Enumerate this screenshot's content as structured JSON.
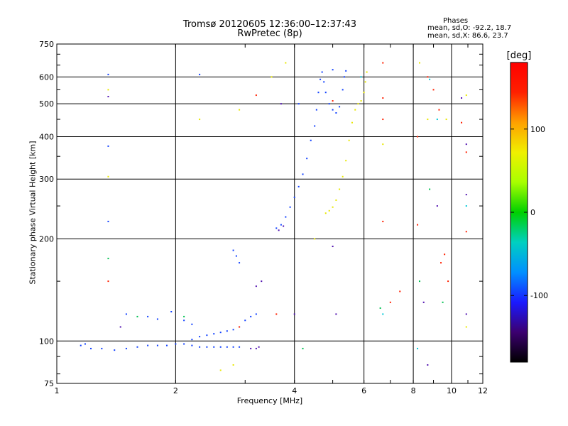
{
  "chart_data": {
    "type": "scatter",
    "title_line1": "Tromsø 20120605 12:36:00–12:37:43",
    "title_line2": "RwPretec (8p)",
    "xlabel": "Frequency [MHz]",
    "ylabel": "Stationary phase Virtual Height [km]",
    "x_scale": "log",
    "y_scale": "log",
    "xlim": [
      1,
      12
    ],
    "ylim": [
      75,
      750
    ],
    "x_ticks": [
      1,
      2,
      4,
      6,
      8,
      10,
      12
    ],
    "y_ticks": [
      75,
      100,
      200,
      300,
      400,
      500,
      600,
      750
    ],
    "grid": true,
    "phases_info": {
      "header": "Phases",
      "o_stats": "mean, sd,O: -92.2, 18.7",
      "x_stats": "mean, sd,X: 86.6, 23.7"
    },
    "colorbar": {
      "label": "[deg]",
      "range": [
        -180,
        180
      ],
      "ticks": [
        -100,
        0,
        100
      ],
      "colors": [
        "#000000",
        "#3c0070",
        "#1a1aff",
        "#0090ff",
        "#00d0c0",
        "#00d000",
        "#a8ff00",
        "#f0f000",
        "#ffa000",
        "#ff2000",
        "#ff0000"
      ]
    },
    "series": [
      {
        "phase": -100,
        "color": "#1040ff",
        "points": [
          [
            1.15,
            97
          ],
          [
            1.18,
            98
          ],
          [
            1.22,
            95
          ],
          [
            1.3,
            95
          ],
          [
            1.4,
            94
          ],
          [
            1.5,
            95
          ],
          [
            1.6,
            96
          ],
          [
            1.7,
            97
          ],
          [
            1.8,
            97
          ],
          [
            1.9,
            97
          ],
          [
            2.0,
            98
          ],
          [
            2.1,
            98
          ],
          [
            2.2,
            97
          ],
          [
            2.3,
            96
          ],
          [
            2.4,
            96
          ],
          [
            2.5,
            96
          ],
          [
            2.6,
            96
          ],
          [
            2.7,
            96
          ],
          [
            2.8,
            96
          ],
          [
            2.9,
            96
          ],
          [
            2.2,
            101
          ],
          [
            2.3,
            103
          ],
          [
            2.4,
            104
          ],
          [
            2.5,
            105
          ],
          [
            2.6,
            106
          ],
          [
            2.7,
            107
          ],
          [
            2.8,
            108
          ],
          [
            2.9,
            110
          ],
          [
            3.0,
            115
          ],
          [
            3.1,
            118
          ],
          [
            3.2,
            120
          ],
          [
            2.8,
            185
          ],
          [
            2.85,
            178
          ],
          [
            2.9,
            170
          ],
          [
            3.6,
            215
          ],
          [
            3.7,
            220
          ],
          [
            3.8,
            232
          ],
          [
            3.9,
            248
          ],
          [
            4.0,
            265
          ],
          [
            4.1,
            285
          ],
          [
            4.2,
            310
          ],
          [
            4.3,
            345
          ],
          [
            4.4,
            390
          ],
          [
            4.5,
            430
          ],
          [
            4.55,
            480
          ],
          [
            4.6,
            540
          ],
          [
            4.65,
            590
          ],
          [
            4.7,
            620
          ],
          [
            4.75,
            580
          ],
          [
            4.8,
            540
          ],
          [
            4.9,
            500
          ],
          [
            5.0,
            480
          ],
          [
            5.1,
            470
          ],
          [
            5.2,
            490
          ],
          [
            5.3,
            550
          ],
          [
            5.35,
            600
          ],
          [
            5.4,
            625
          ],
          [
            1.5,
            120
          ],
          [
            1.7,
            118
          ],
          [
            1.8,
            116
          ],
          [
            1.95,
            122
          ],
          [
            2.1,
            115
          ],
          [
            2.2,
            112
          ],
          [
            1.35,
            225
          ],
          [
            1.35,
            375
          ],
          [
            1.35,
            610
          ],
          [
            2.3,
            610
          ],
          [
            4.1,
            500
          ],
          [
            5.0,
            630
          ]
        ]
      },
      {
        "phase": -140,
        "color": "#5010b0",
        "points": [
          [
            3.1,
            95
          ],
          [
            3.2,
            95
          ],
          [
            3.25,
            96
          ],
          [
            3.65,
            212
          ],
          [
            3.75,
            218
          ],
          [
            1.45,
            110
          ],
          [
            1.35,
            525
          ],
          [
            3.2,
            145
          ],
          [
            3.3,
            150
          ],
          [
            3.7,
            500
          ],
          [
            4.0,
            120
          ],
          [
            5.0,
            190
          ],
          [
            5.1,
            120
          ],
          [
            8.5,
            130
          ],
          [
            8.7,
            85
          ],
          [
            9.2,
            250
          ],
          [
            10.6,
            520
          ],
          [
            10.9,
            380
          ],
          [
            10.9,
            270
          ],
          [
            10.9,
            120
          ]
        ]
      },
      {
        "phase": 110,
        "color": "#e8e800",
        "points": [
          [
            4.8,
            238
          ],
          [
            4.9,
            242
          ],
          [
            5.0,
            248
          ],
          [
            5.1,
            260
          ],
          [
            5.2,
            280
          ],
          [
            5.3,
            305
          ],
          [
            5.4,
            340
          ],
          [
            5.5,
            390
          ],
          [
            5.6,
            440
          ],
          [
            5.7,
            480
          ],
          [
            5.8,
            500
          ],
          [
            5.9,
            510
          ],
          [
            6.0,
            540
          ],
          [
            6.05,
            580
          ],
          [
            6.1,
            620
          ],
          [
            1.35,
            550
          ],
          [
            1.35,
            305
          ],
          [
            2.3,
            450
          ],
          [
            2.6,
            82
          ],
          [
            2.8,
            85
          ],
          [
            2.9,
            480
          ],
          [
            3.5,
            600
          ],
          [
            3.8,
            660
          ],
          [
            4.5,
            200
          ],
          [
            6.7,
            380
          ],
          [
            8.3,
            660
          ],
          [
            8.7,
            450
          ],
          [
            9.7,
            450
          ],
          [
            10.9,
            530
          ],
          [
            10.9,
            110
          ]
        ]
      },
      {
        "phase": 160,
        "color": "#ff2000",
        "points": [
          [
            6.7,
            660
          ],
          [
            6.7,
            520
          ],
          [
            6.7,
            450
          ],
          [
            6.7,
            225
          ],
          [
            7.0,
            130
          ],
          [
            7.4,
            140
          ],
          [
            8.2,
            220
          ],
          [
            8.7,
            600
          ],
          [
            9.0,
            550
          ],
          [
            9.3,
            480
          ],
          [
            9.6,
            180
          ],
          [
            9.8,
            150
          ],
          [
            10.6,
            440
          ],
          [
            10.9,
            360
          ],
          [
            3.2,
            530
          ],
          [
            1.35,
            150
          ],
          [
            5.0,
            510
          ],
          [
            8.2,
            400
          ],
          [
            9.4,
            170
          ],
          [
            10.9,
            210
          ],
          [
            2.9,
            110
          ],
          [
            3.6,
            120
          ]
        ]
      },
      {
        "phase": 30,
        "color": "#00c050",
        "points": [
          [
            1.35,
            175
          ],
          [
            1.6,
            118
          ],
          [
            2.1,
            118
          ],
          [
            8.3,
            150
          ],
          [
            8.8,
            280
          ],
          [
            9.5,
            130
          ],
          [
            6.6,
            125
          ],
          [
            4.2,
            95
          ]
        ]
      },
      {
        "phase": -40,
        "color": "#00c8d8",
        "points": [
          [
            6.7,
            120
          ],
          [
            8.2,
            95
          ],
          [
            8.8,
            590
          ],
          [
            9.2,
            450
          ],
          [
            10.9,
            250
          ],
          [
            5.9,
            600
          ]
        ]
      }
    ]
  }
}
